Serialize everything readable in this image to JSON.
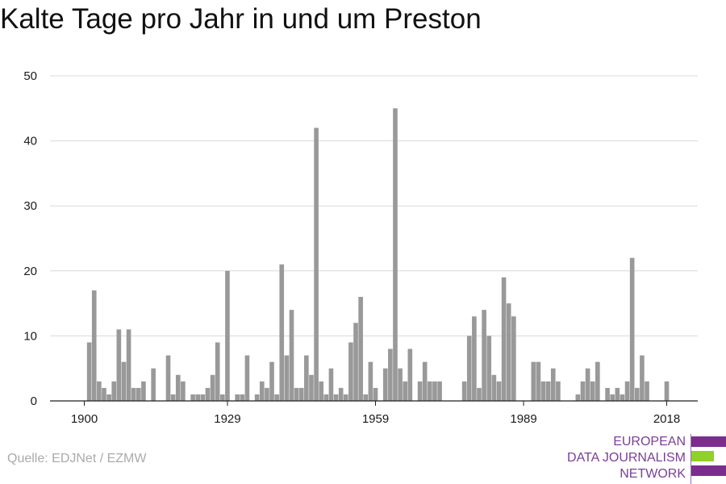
{
  "title": "Kalte Tage pro Jahr in und um Preston",
  "source": "Quelle: EDJNet / EZMW",
  "logo": {
    "lines": [
      "EUROPEAN",
      "DATA JOURNALISM",
      "NETWORK"
    ],
    "colors": [
      "#7b2d8e",
      "#8fd129",
      "#7b2d8e"
    ]
  },
  "chart_data": {
    "type": "bar",
    "title": "Kalte Tage pro Jahr in und um Preston",
    "xlabel": "",
    "ylabel": "",
    "x_ticks": [
      1900,
      1929,
      1959,
      1989,
      2018
    ],
    "y_ticks": [
      0,
      10,
      20,
      30,
      40,
      50
    ],
    "xlim": [
      1900,
      2018
    ],
    "ylim": [
      0,
      50
    ],
    "bar_color": "#999999",
    "grid": true,
    "years": [
      1900,
      1901,
      1902,
      1903,
      1904,
      1905,
      1906,
      1907,
      1908,
      1909,
      1910,
      1911,
      1912,
      1913,
      1914,
      1915,
      1916,
      1917,
      1918,
      1919,
      1920,
      1921,
      1922,
      1923,
      1924,
      1925,
      1926,
      1927,
      1928,
      1929,
      1930,
      1931,
      1932,
      1933,
      1934,
      1935,
      1936,
      1937,
      1938,
      1939,
      1940,
      1941,
      1942,
      1943,
      1944,
      1945,
      1946,
      1947,
      1948,
      1949,
      1950,
      1951,
      1952,
      1953,
      1954,
      1955,
      1956,
      1957,
      1958,
      1959,
      1960,
      1961,
      1962,
      1963,
      1964,
      1965,
      1966,
      1967,
      1968,
      1969,
      1970,
      1971,
      1972,
      1973,
      1974,
      1975,
      1976,
      1977,
      1978,
      1979,
      1980,
      1981,
      1982,
      1983,
      1984,
      1985,
      1986,
      1987,
      1988,
      1989,
      1990,
      1991,
      1992,
      1993,
      1994,
      1995,
      1996,
      1997,
      1998,
      1999,
      2000,
      2001,
      2002,
      2003,
      2004,
      2005,
      2006,
      2007,
      2008,
      2009,
      2010,
      2011,
      2012,
      2013,
      2014,
      2015,
      2016,
      2017,
      2018
    ],
    "values": [
      0,
      9,
      17,
      3,
      2,
      1,
      3,
      11,
      6,
      11,
      2,
      2,
      3,
      0,
      5,
      0,
      0,
      7,
      1,
      4,
      3,
      0,
      1,
      1,
      1,
      2,
      4,
      9,
      1,
      20,
      0,
      1,
      1,
      7,
      0,
      1,
      3,
      2,
      6,
      1,
      21,
      7,
      14,
      2,
      2,
      7,
      4,
      42,
      3,
      1,
      5,
      1,
      2,
      1,
      9,
      12,
      16,
      1,
      6,
      2,
      0,
      5,
      8,
      45,
      5,
      3,
      8,
      0,
      3,
      6,
      3,
      3,
      3,
      0,
      0,
      0,
      0,
      3,
      10,
      13,
      2,
      14,
      10,
      4,
      3,
      19,
      15,
      13,
      0,
      0,
      0,
      6,
      6,
      3,
      3,
      5,
      3,
      0,
      0,
      0,
      1,
      3,
      5,
      3,
      6,
      0,
      2,
      1,
      2,
      1,
      3,
      22,
      2,
      7,
      3,
      0,
      0,
      0,
      3
    ]
  }
}
